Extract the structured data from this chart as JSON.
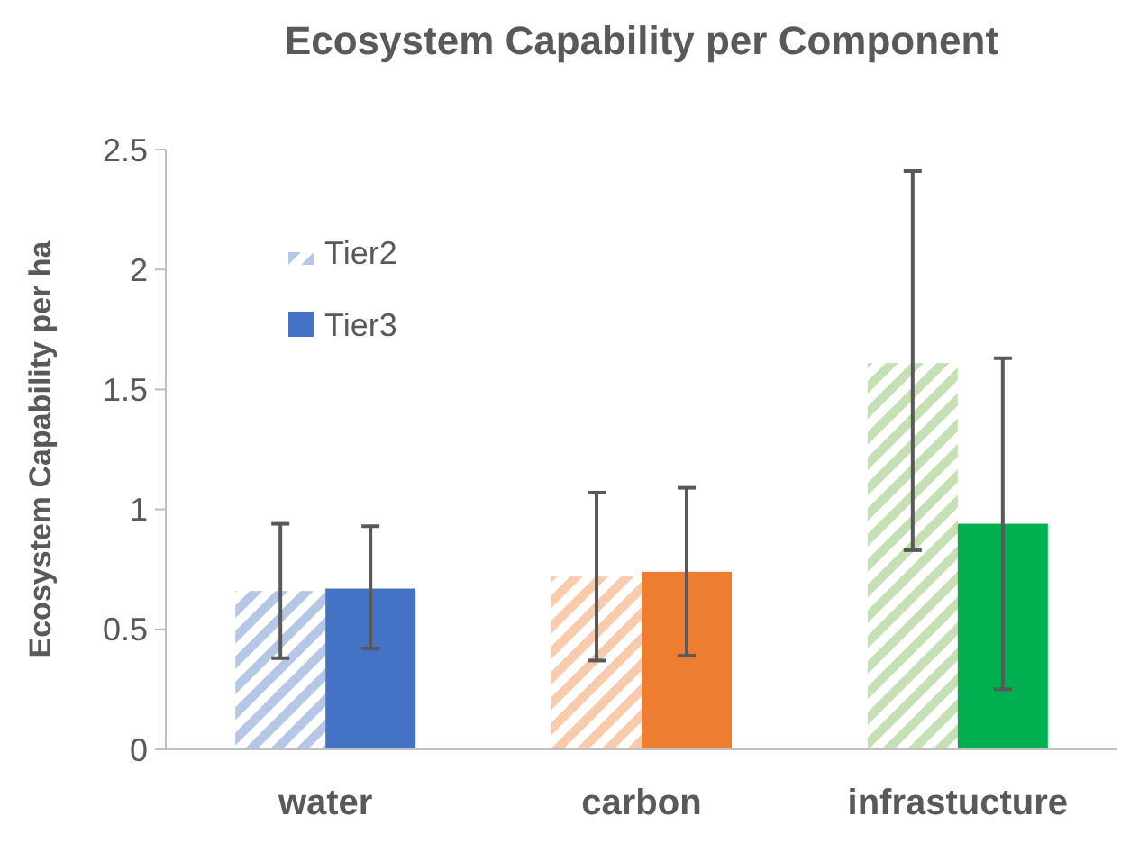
{
  "chart_data": {
    "type": "bar",
    "title": "Ecosystem Capability per Component",
    "ylabel": "Ecosystem Capability per ha",
    "categories": [
      "water",
      "carbon",
      "infrastucture"
    ],
    "series": [
      {
        "name": "Tier2",
        "colors": [
          "#b4c7e7",
          "#f8cbad",
          "#c5e0b4"
        ],
        "values": [
          0.66,
          0.72,
          1.61
        ],
        "errors": [
          [
            0.38,
            0.94
          ],
          [
            0.37,
            1.07
          ],
          [
            0.83,
            2.41
          ]
        ]
      },
      {
        "name": "Tier3",
        "color": "#4472c4",
        "colors": [
          "#4472c4",
          "#ed7d31",
          "#00b050"
        ],
        "values": [
          0.67,
          0.74,
          0.94
        ],
        "errors": [
          [
            0.42,
            0.93
          ],
          [
            0.39,
            1.09
          ],
          [
            0.25,
            1.63
          ]
        ]
      }
    ],
    "ylim": [
      0,
      2.5
    ],
    "yticks": [
      0,
      0.5,
      1,
      1.5,
      2,
      2.5
    ],
    "grid": false,
    "legend": "top left"
  }
}
